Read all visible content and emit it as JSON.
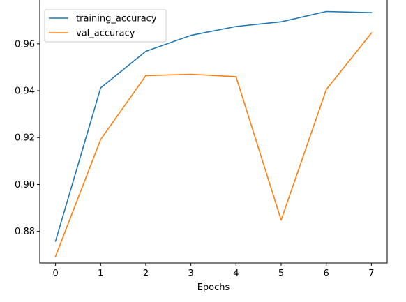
{
  "chart_data": {
    "type": "line",
    "x": [
      0,
      1,
      2,
      3,
      4,
      5,
      6,
      7
    ],
    "xticks": [
      "0",
      "1",
      "2",
      "3",
      "4",
      "5",
      "6",
      "7"
    ],
    "yticks": [
      "0.88",
      "0.90",
      "0.92",
      "0.94",
      "0.96"
    ],
    "xlabel": "Epochs",
    "ylabel": "",
    "xlim": [
      -0.35,
      7.35
    ],
    "ylim": [
      0.8665,
      0.979
    ],
    "grid": false,
    "legend_position": "top-left",
    "series": [
      {
        "name": "training_accuracy",
        "color": "#1f77b4",
        "values": [
          0.8758,
          0.9412,
          0.9568,
          0.9636,
          0.9674,
          0.9694,
          0.9738,
          0.9733
        ]
      },
      {
        "name": "val_accuracy",
        "color": "#ff7f0e",
        "values": [
          0.8693,
          0.9192,
          0.9464,
          0.947,
          0.946,
          0.8848,
          0.9405,
          0.9646
        ]
      }
    ]
  }
}
